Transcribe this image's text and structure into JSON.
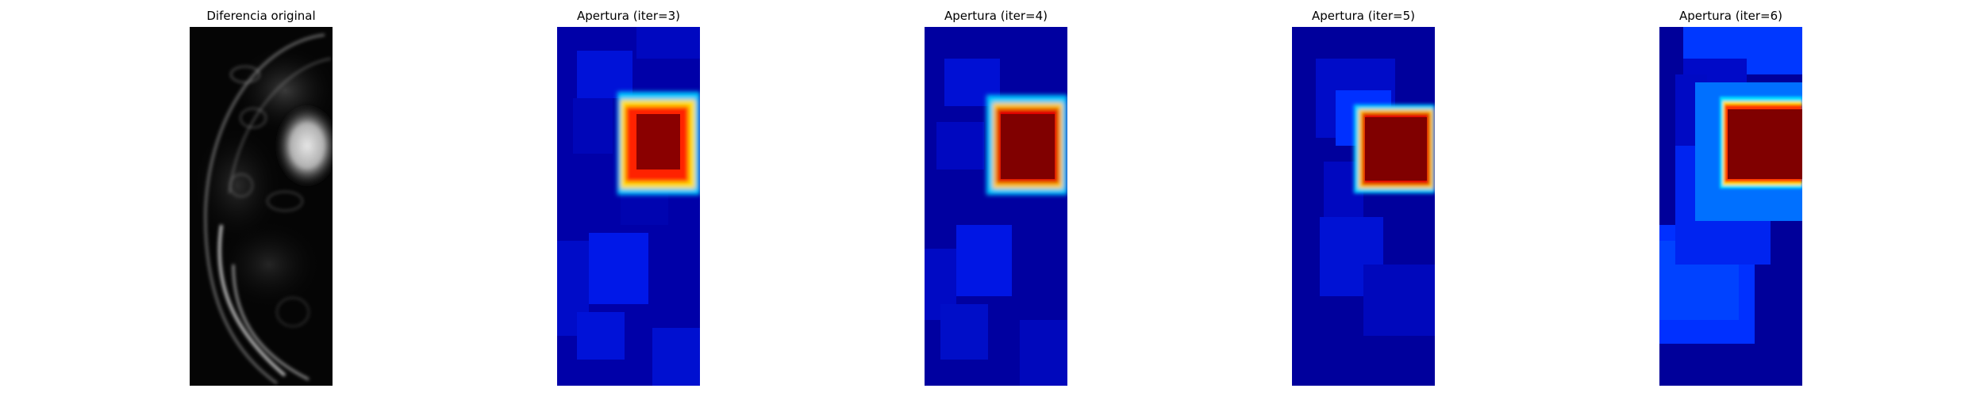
{
  "figure": {
    "panels": [
      {
        "title": "Diferencia original",
        "kind": "grayscale-difference-image",
        "colormap": "gray"
      },
      {
        "title": "Apertura (iter=3)",
        "kind": "morphological-opening-heatmap",
        "colormap": "jet"
      },
      {
        "title": "Apertura (iter=4)",
        "kind": "morphological-opening-heatmap",
        "colormap": "jet"
      },
      {
        "title": "Apertura (iter=5)",
        "kind": "morphological-opening-heatmap",
        "colormap": "jet"
      },
      {
        "title": "Apertura (iter=6)",
        "kind": "morphological-opening-heatmap",
        "colormap": "jet"
      }
    ],
    "colors": {
      "jet_dark_blue": "#00008b",
      "jet_blue": "#0000ff",
      "jet_cyan": "#00ffff",
      "jet_yellow": "#ffff00",
      "jet_red": "#ff0000",
      "jet_dark_red": "#800000",
      "background": "#ffffff"
    }
  }
}
